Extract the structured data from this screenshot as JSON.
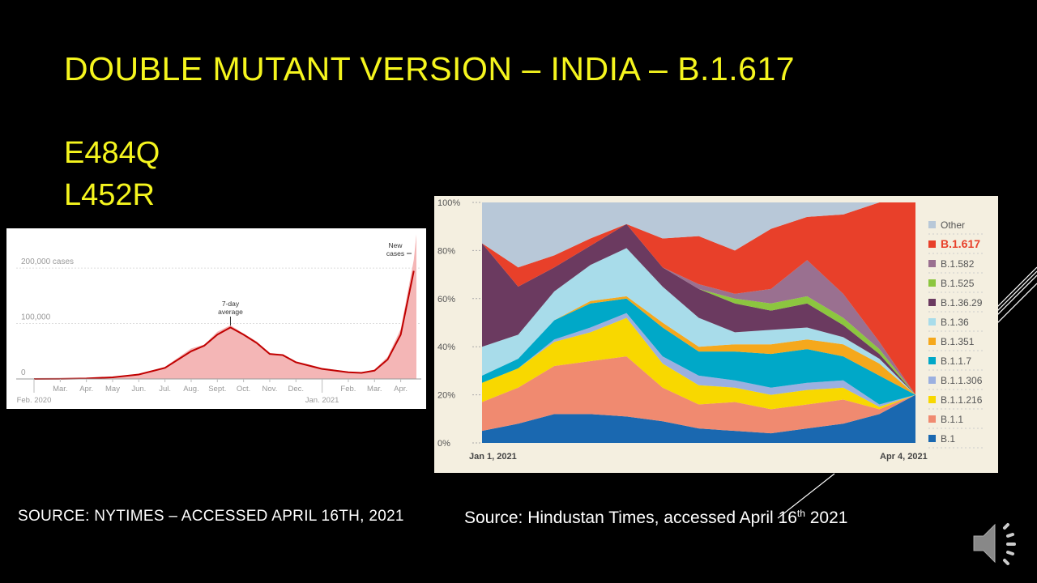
{
  "slide": {
    "title": "DOUBLE MUTANT VERSION – INDIA – B.1.617",
    "mutations": [
      "E484Q",
      "L452R"
    ],
    "source_left": "SOURCE:  NYTIMES – ACCESSED  APRIL 16TH, 2021",
    "source_right_pre": "Source: Hindustan Times, accessed April 16",
    "source_right_sup": "th",
    "source_right_post": " 2021",
    "speaker_icon": "speaker-icon"
  },
  "chart_data": [
    {
      "type": "area",
      "title": "New cases",
      "annotations": [
        "7-day average",
        "New cases"
      ],
      "y_ticks": [
        "0",
        "100,000",
        "200,000 cases"
      ],
      "ylim": [
        0,
        260000
      ],
      "x_labels": [
        "Feb. 2020",
        "Mar.",
        "Apr.",
        "May",
        "Jun.",
        "Jul.",
        "Aug.",
        "Sept.",
        "Oct.",
        "Nov.",
        "Dec.",
        "Jan. 2021",
        "Feb.",
        "Mar.",
        "Apr."
      ],
      "series": [
        {
          "name": "7-day average",
          "color": "#c00000",
          "x": [
            0,
            1,
            2,
            3,
            4,
            5,
            6,
            6.5,
            7,
            7.5,
            8,
            8.5,
            9,
            9.5,
            10,
            11,
            12,
            12.5,
            13,
            13.5,
            14,
            14.5
          ],
          "values": [
            0,
            200,
            1000,
            3000,
            8000,
            20000,
            50000,
            60000,
            80000,
            93000,
            80000,
            65000,
            45000,
            43000,
            30000,
            18000,
            12000,
            11000,
            15000,
            35000,
            80000,
            195000
          ]
        },
        {
          "name": "New cases",
          "color": "#f4b6b6",
          "x": [
            0,
            1,
            2,
            3,
            4,
            5,
            6,
            6.5,
            7,
            7.5,
            8,
            8.5,
            9,
            9.5,
            10,
            11,
            12,
            12.5,
            13,
            13.5,
            14,
            14.5,
            14.6
          ],
          "values": [
            0,
            300,
            1200,
            3500,
            9000,
            22000,
            55000,
            62000,
            85000,
            97000,
            82000,
            68000,
            47000,
            45000,
            32000,
            20000,
            13000,
            12000,
            17000,
            40000,
            90000,
            215000,
            261000
          ]
        }
      ]
    },
    {
      "type": "area",
      "stacked": true,
      "title": "",
      "x_labels": [
        "Jan 1, 2021",
        "Apr 4, 2021"
      ],
      "y_ticks": [
        "0%",
        "20%",
        "40%",
        "60%",
        "80%",
        "100%"
      ],
      "ylim": [
        0,
        100
      ],
      "legend_position": "right",
      "series": [
        {
          "name": "B.1",
          "color": "#1a68b0",
          "values": [
            5,
            8,
            12,
            12,
            11,
            9,
            6,
            5,
            4,
            6,
            8,
            12,
            20
          ]
        },
        {
          "name": "B.1.1",
          "color": "#f08a70",
          "values": [
            12,
            15,
            20,
            22,
            25,
            14,
            10,
            12,
            10,
            10,
            10,
            2,
            0
          ]
        },
        {
          "name": "B.1.1.216",
          "color": "#f8d800",
          "values": [
            8,
            8,
            10,
            12,
            16,
            10,
            8,
            6,
            6,
            6,
            5,
            1,
            0
          ]
        },
        {
          "name": "B.1.1.306",
          "color": "#9bb0e0",
          "values": [
            0,
            0,
            1,
            2,
            2,
            3,
            4,
            3,
            3,
            3,
            3,
            1,
            0
          ]
        },
        {
          "name": "B.1.1.7",
          "color": "#00a8c8",
          "values": [
            3,
            4,
            8,
            10,
            6,
            12,
            10,
            12,
            14,
            14,
            10,
            12,
            0
          ]
        },
        {
          "name": "B.1.351",
          "color": "#f5a81c",
          "values": [
            0,
            0,
            0,
            1,
            1,
            2,
            2,
            3,
            4,
            4,
            5,
            5,
            0
          ]
        },
        {
          "name": "B.1.36",
          "color": "#a8dcea",
          "values": [
            12,
            10,
            12,
            15,
            20,
            15,
            12,
            5,
            6,
            5,
            3,
            2,
            0
          ]
        },
        {
          "name": "B.1.36.29",
          "color": "#6b3a60",
          "values": [
            43,
            20,
            10,
            8,
            10,
            8,
            12,
            12,
            8,
            10,
            5,
            2,
            0
          ]
        },
        {
          "name": "B.1.525",
          "color": "#8cc63f",
          "values": [
            0,
            0,
            0,
            0,
            0,
            0,
            0,
            2,
            3,
            3,
            3,
            2,
            0
          ]
        },
        {
          "name": "B.1.582",
          "color": "#9a7090",
          "values": [
            0,
            0,
            0,
            0,
            0,
            0,
            2,
            2,
            6,
            15,
            10,
            3,
            0
          ]
        },
        {
          "name": "B.1.617",
          "color": "#e8402a",
          "values": [
            0,
            8,
            5,
            3,
            0,
            12,
            20,
            18,
            25,
            18,
            33,
            58,
            80
          ]
        },
        {
          "name": "Other",
          "color": "#b8c8d8",
          "values": [
            17,
            27,
            22,
            15,
            9,
            15,
            14,
            20,
            11,
            6,
            5,
            0,
            0
          ]
        }
      ]
    }
  ]
}
